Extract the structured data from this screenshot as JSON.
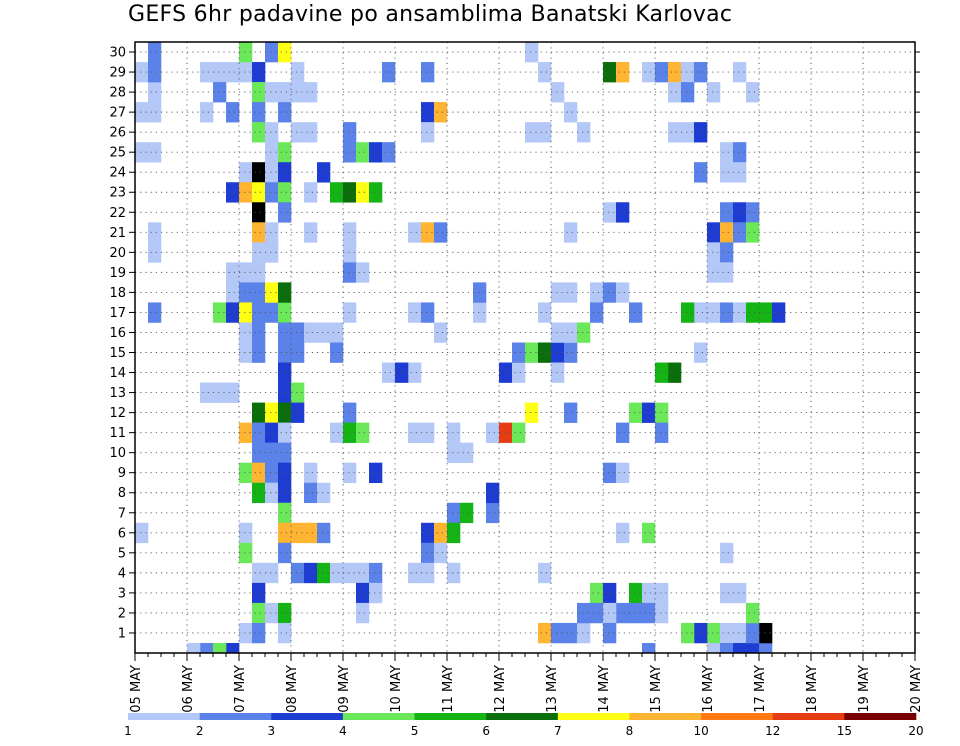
{
  "chart_data": {
    "type": "heatmap",
    "title": "GEFS 6hr padavine po ansamblima Banatski Karlovac",
    "x_tick_labels": [
      "05 MAY",
      "06 MAY",
      "07 MAY",
      "08 MAY",
      "09 MAY",
      "10 MAY",
      "11 MAY",
      "12 MAY",
      "13 MAY",
      "14 MAY",
      "15 MAY",
      "16 MAY",
      "17 MAY",
      "18 MAY",
      "19 MAY",
      "20 MAY"
    ],
    "x_range_days": [
      0,
      15
    ],
    "y_members": [
      1,
      30
    ],
    "grid": "dotted",
    "colorbar": {
      "labels": [
        "1",
        "2",
        "3",
        "4",
        "5",
        "6",
        "7",
        "8",
        "10",
        "12",
        "15",
        "20"
      ],
      "colors": [
        "#b4c8f8",
        "#5a82e8",
        "#1e3cd2",
        "#6ae85a",
        "#14b414",
        "#0a6e0a",
        "#ffff14",
        "#ffb432",
        "#ff7814",
        "#e63c14",
        "#780000"
      ]
    },
    "class_thresholds_mm": [
      1,
      2,
      3,
      4,
      5,
      6,
      7,
      8,
      10,
      12,
      15,
      20
    ],
    "cells": [
      [
        0.0,
        29,
        1
      ],
      [
        0.25,
        28,
        1
      ],
      [
        0.25,
        29,
        2
      ],
      [
        0.25,
        30,
        2
      ],
      [
        0.0,
        27,
        1
      ],
      [
        0.25,
        27,
        1
      ],
      [
        0.0,
        25,
        1
      ],
      [
        0.25,
        25,
        1
      ],
      [
        0.25,
        21,
        1
      ],
      [
        0.25,
        20,
        1
      ],
      [
        0.25,
        17,
        2
      ],
      [
        -0.25,
        9,
        1
      ],
      [
        0.0,
        6,
        1
      ],
      [
        1.25,
        29,
        1
      ],
      [
        1.5,
        29,
        1
      ],
      [
        1.75,
        29,
        1
      ],
      [
        2.0,
        29,
        1
      ],
      [
        2.25,
        29,
        3
      ],
      [
        1.5,
        28,
        2
      ],
      [
        1.25,
        27,
        1
      ],
      [
        1.75,
        27,
        2
      ],
      [
        2.25,
        28,
        4
      ],
      [
        2.25,
        27,
        2
      ],
      [
        2.25,
        26,
        4
      ],
      [
        2.0,
        30,
        4
      ],
      [
        2.5,
        30,
        2
      ],
      [
        2.75,
        30,
        7
      ],
      [
        2.5,
        28,
        1
      ],
      [
        2.75,
        28,
        1
      ],
      [
        2.75,
        27,
        2
      ],
      [
        2.5,
        26,
        1
      ],
      [
        2.5,
        25,
        1
      ],
      [
        2.75,
        25,
        4
      ],
      [
        2.0,
        24,
        1
      ],
      [
        2.25,
        24,
        12
      ],
      [
        2.5,
        24,
        1
      ],
      [
        2.75,
        24,
        3
      ],
      [
        1.75,
        23,
        3
      ],
      [
        2.0,
        23,
        8
      ],
      [
        2.25,
        23,
        7
      ],
      [
        2.5,
        23,
        2
      ],
      [
        2.75,
        23,
        4
      ],
      [
        2.25,
        22,
        15
      ],
      [
        2.75,
        22,
        2
      ],
      [
        2.25,
        21,
        8
      ],
      [
        2.5,
        21,
        1
      ],
      [
        2.25,
        20,
        1
      ],
      [
        2.5,
        20,
        1
      ],
      [
        2.25,
        19,
        1
      ],
      [
        1.75,
        19,
        1
      ],
      [
        2.0,
        19,
        1
      ],
      [
        1.75,
        18,
        1
      ],
      [
        2.0,
        18,
        2
      ],
      [
        2.25,
        18,
        2
      ],
      [
        1.5,
        17,
        4
      ],
      [
        1.75,
        17,
        3
      ],
      [
        2.0,
        17,
        7
      ],
      [
        2.25,
        17,
        2
      ],
      [
        2.5,
        17,
        2
      ],
      [
        2.75,
        17,
        4
      ],
      [
        2.0,
        16,
        1
      ],
      [
        2.25,
        16,
        2
      ],
      [
        2.75,
        16,
        2
      ],
      [
        3.0,
        16,
        2
      ],
      [
        2.0,
        15,
        1
      ],
      [
        2.25,
        15,
        2
      ],
      [
        2.75,
        15,
        2
      ],
      [
        3.0,
        15,
        2
      ],
      [
        2.5,
        18,
        7
      ],
      [
        2.75,
        18,
        6
      ],
      [
        1.5,
        13,
        1
      ],
      [
        1.75,
        13,
        1
      ],
      [
        1.25,
        13,
        1
      ],
      [
        2.75,
        14,
        3
      ],
      [
        2.75,
        13,
        3
      ],
      [
        3.0,
        13,
        4
      ],
      [
        2.25,
        12,
        6
      ],
      [
        2.5,
        12,
        7
      ],
      [
        2.75,
        12,
        6
      ],
      [
        3.0,
        12,
        3
      ],
      [
        2.0,
        11,
        8
      ],
      [
        2.25,
        11,
        2
      ],
      [
        2.5,
        11,
        3
      ],
      [
        2.75,
        11,
        1
      ],
      [
        2.25,
        10,
        2
      ],
      [
        2.5,
        10,
        2
      ],
      [
        2.75,
        10,
        2
      ],
      [
        2.0,
        9,
        4
      ],
      [
        2.25,
        9,
        8
      ],
      [
        2.5,
        9,
        2
      ],
      [
        2.75,
        9,
        3
      ],
      [
        2.25,
        8,
        5
      ],
      [
        2.5,
        8,
        1
      ],
      [
        2.75,
        8,
        3
      ],
      [
        2.75,
        7,
        4
      ],
      [
        2.0,
        6,
        1
      ],
      [
        2.75,
        6,
        8
      ],
      [
        3.0,
        6,
        8
      ],
      [
        3.25,
        6,
        8
      ],
      [
        3.5,
        6,
        2
      ],
      [
        2.0,
        5,
        4
      ],
      [
        2.75,
        5,
        2
      ],
      [
        2.25,
        4,
        1
      ],
      [
        2.5,
        4,
        1
      ],
      [
        3.0,
        4,
        2
      ],
      [
        3.25,
        4,
        3
      ],
      [
        3.5,
        4,
        5
      ],
      [
        2.25,
        3,
        3
      ],
      [
        2.25,
        2,
        4
      ],
      [
        2.5,
        2,
        1
      ],
      [
        2.75,
        2,
        5
      ],
      [
        2.0,
        1,
        1
      ],
      [
        2.25,
        1,
        2
      ],
      [
        2.75,
        1,
        1
      ],
      [
        1.75,
        0,
        3
      ],
      [
        1.25,
        0,
        2
      ],
      [
        1.5,
        0,
        4
      ],
      [
        1.0,
        0,
        1
      ],
      [
        3.0,
        29,
        1
      ],
      [
        3.0,
        28,
        1
      ],
      [
        3.25,
        28,
        1
      ],
      [
        3.0,
        26,
        1
      ],
      [
        3.25,
        26,
        1
      ],
      [
        3.25,
        21,
        1
      ],
      [
        3.25,
        23,
        1
      ],
      [
        3.5,
        24,
        3
      ],
      [
        3.75,
        23,
        5
      ],
      [
        4.0,
        23,
        6
      ],
      [
        4.25,
        23,
        7
      ],
      [
        4.5,
        23,
        5
      ],
      [
        4.0,
        26,
        2
      ],
      [
        4.0,
        25,
        2
      ],
      [
        4.25,
        25,
        4
      ],
      [
        4.5,
        25,
        3
      ],
      [
        4.75,
        25,
        2
      ],
      [
        4.0,
        21,
        1
      ],
      [
        4.0,
        20,
        1
      ],
      [
        4.0,
        19,
        2
      ],
      [
        4.25,
        19,
        1
      ],
      [
        4.0,
        17,
        1
      ],
      [
        3.25,
        16,
        1
      ],
      [
        3.5,
        16,
        1
      ],
      [
        3.75,
        16,
        1
      ],
      [
        3.75,
        15,
        2
      ],
      [
        4.0,
        12,
        2
      ],
      [
        3.75,
        11,
        1
      ],
      [
        4.0,
        11,
        5
      ],
      [
        4.25,
        11,
        4
      ],
      [
        3.25,
        9,
        1
      ],
      [
        4.0,
        9,
        1
      ],
      [
        4.5,
        9,
        3
      ],
      [
        3.25,
        8,
        2
      ],
      [
        3.5,
        8,
        1
      ],
      [
        3.75,
        4,
        1
      ],
      [
        4.0,
        4,
        1
      ],
      [
        4.25,
        4,
        1
      ],
      [
        4.5,
        4,
        2
      ],
      [
        4.25,
        3,
        3
      ],
      [
        4.5,
        3,
        1
      ],
      [
        4.25,
        2,
        1
      ],
      [
        4.75,
        29,
        2
      ],
      [
        5.5,
        29,
        2
      ],
      [
        5.5,
        27,
        3
      ],
      [
        5.75,
        27,
        8
      ],
      [
        5.5,
        26,
        1
      ],
      [
        5.25,
        21,
        1
      ],
      [
        5.5,
        21,
        8
      ],
      [
        5.75,
        21,
        2
      ],
      [
        5.25,
        17,
        1
      ],
      [
        5.5,
        17,
        2
      ],
      [
        5.75,
        16,
        1
      ],
      [
        5.25,
        14,
        1
      ],
      [
        4.75,
        14,
        1
      ],
      [
        5.0,
        14,
        3
      ],
      [
        5.25,
        11,
        1
      ],
      [
        5.5,
        11,
        1
      ],
      [
        5.5,
        6,
        3
      ],
      [
        5.75,
        6,
        8
      ],
      [
        5.5,
        5,
        2
      ],
      [
        5.75,
        5,
        1
      ],
      [
        5.25,
        4,
        1
      ],
      [
        5.5,
        4,
        1
      ],
      [
        6.0,
        4,
        1
      ],
      [
        6.0,
        11,
        1
      ],
      [
        6.0,
        10,
        1
      ],
      [
        6.25,
        10,
        1
      ],
      [
        6.0,
        7,
        2
      ],
      [
        6.25,
        7,
        5
      ],
      [
        6.0,
        6,
        5
      ],
      [
        6.75,
        7,
        2
      ],
      [
        6.75,
        8,
        3
      ],
      [
        6.5,
        17,
        1
      ],
      [
        6.5,
        18,
        2
      ],
      [
        6.75,
        11,
        1
      ],
      [
        7.0,
        11,
        10
      ],
      [
        7.0,
        14,
        3
      ],
      [
        7.25,
        14,
        1
      ],
      [
        7.25,
        15,
        2
      ],
      [
        7.5,
        15,
        4
      ],
      [
        7.75,
        15,
        6
      ],
      [
        8.0,
        15,
        3
      ],
      [
        8.25,
        15,
        2
      ],
      [
        8.0,
        14,
        1
      ],
      [
        7.5,
        26,
        1
      ],
      [
        7.75,
        26,
        1
      ],
      [
        8.5,
        26,
        1
      ],
      [
        8.25,
        27,
        1
      ],
      [
        8.0,
        28,
        1
      ],
      [
        7.75,
        29,
        1
      ],
      [
        7.5,
        30,
        1
      ],
      [
        8.25,
        21,
        1
      ],
      [
        8.25,
        12,
        2
      ],
      [
        7.75,
        4,
        1
      ],
      [
        7.75,
        1,
        8
      ],
      [
        8.0,
        1,
        2
      ],
      [
        8.25,
        1,
        2
      ],
      [
        8.5,
        1,
        1
      ],
      [
        7.25,
        11,
        4
      ],
      [
        7.5,
        12,
        7
      ],
      [
        8.0,
        16,
        1
      ],
      [
        8.25,
        16,
        1
      ],
      [
        8.5,
        16,
        4
      ],
      [
        7.75,
        17,
        1
      ],
      [
        8.25,
        18,
        1
      ],
      [
        8.0,
        18,
        1
      ],
      [
        8.75,
        18,
        1
      ],
      [
        8.75,
        17,
        2
      ],
      [
        9.0,
        29,
        6
      ],
      [
        9.25,
        29,
        8
      ],
      [
        9.0,
        22,
        1
      ],
      [
        9.25,
        22,
        3
      ],
      [
        9.0,
        18,
        2
      ],
      [
        9.25,
        18,
        1
      ],
      [
        9.5,
        17,
        2
      ],
      [
        9.5,
        12,
        4
      ],
      [
        9.75,
        12,
        3
      ],
      [
        10.0,
        12,
        4
      ],
      [
        9.25,
        11,
        2
      ],
      [
        9.0,
        9,
        2
      ],
      [
        9.25,
        9,
        1
      ],
      [
        9.25,
        6,
        1
      ],
      [
        9.75,
        6,
        4
      ],
      [
        9.5,
        3,
        5
      ],
      [
        9.75,
        3,
        1
      ],
      [
        10.0,
        3,
        1
      ],
      [
        8.75,
        3,
        4
      ],
      [
        9.0,
        3,
        3
      ],
      [
        9.25,
        2,
        2
      ],
      [
        9.5,
        2,
        2
      ],
      [
        9.75,
        2,
        2
      ],
      [
        10.0,
        2,
        1
      ],
      [
        8.5,
        2,
        2
      ],
      [
        8.75,
        2,
        2
      ],
      [
        9.0,
        2,
        1
      ],
      [
        9.0,
        1,
        2
      ],
      [
        9.75,
        0,
        2
      ],
      [
        9.75,
        29,
        1
      ],
      [
        10.0,
        29,
        2
      ],
      [
        10.25,
        29,
        8
      ],
      [
        10.5,
        29,
        1
      ],
      [
        10.75,
        29,
        2
      ],
      [
        10.25,
        28,
        1
      ],
      [
        10.5,
        28,
        2
      ],
      [
        10.25,
        26,
        1
      ],
      [
        10.5,
        26,
        1
      ],
      [
        10.75,
        26,
        3
      ],
      [
        10.75,
        24,
        2
      ],
      [
        10.75,
        17,
        1
      ],
      [
        11.0,
        17,
        1
      ],
      [
        11.25,
        17,
        2
      ],
      [
        11.5,
        17,
        1
      ],
      [
        11.75,
        17,
        5
      ],
      [
        12.0,
        17,
        5
      ],
      [
        12.25,
        17,
        3
      ],
      [
        10.5,
        17,
        5
      ],
      [
        10.75,
        15,
        1
      ],
      [
        10.25,
        14,
        6
      ],
      [
        10.0,
        14,
        5
      ],
      [
        11.5,
        29,
        1
      ],
      [
        11.75,
        28,
        1
      ],
      [
        11.0,
        28,
        1
      ],
      [
        11.25,
        25,
        1
      ],
      [
        11.5,
        25,
        2
      ],
      [
        11.25,
        24,
        1
      ],
      [
        11.5,
        24,
        1
      ],
      [
        11.25,
        22,
        2
      ],
      [
        11.5,
        22,
        3
      ],
      [
        11.75,
        22,
        2
      ],
      [
        11.0,
        21,
        3
      ],
      [
        11.25,
        21,
        8
      ],
      [
        11.5,
        21,
        2
      ],
      [
        11.75,
        21,
        4
      ],
      [
        11.0,
        20,
        1
      ],
      [
        11.25,
        20,
        2
      ],
      [
        11.0,
        19,
        1
      ],
      [
        11.25,
        19,
        1
      ],
      [
        10.0,
        11,
        2
      ],
      [
        11.25,
        5,
        1
      ],
      [
        11.25,
        3,
        1
      ],
      [
        11.5,
        3,
        1
      ],
      [
        11.0,
        1,
        4
      ],
      [
        11.25,
        1,
        1
      ],
      [
        11.5,
        1,
        1
      ],
      [
        11.0,
        0,
        1
      ],
      [
        11.25,
        0,
        2
      ],
      [
        11.75,
        0,
        3
      ],
      [
        12.0,
        0,
        2
      ],
      [
        12.0,
        1,
        15
      ],
      [
        11.75,
        1,
        2
      ],
      [
        11.5,
        0,
        3
      ],
      [
        11.75,
        2,
        4
      ],
      [
        10.75,
        1,
        3
      ],
      [
        10.5,
        1,
        4
      ]
    ]
  }
}
